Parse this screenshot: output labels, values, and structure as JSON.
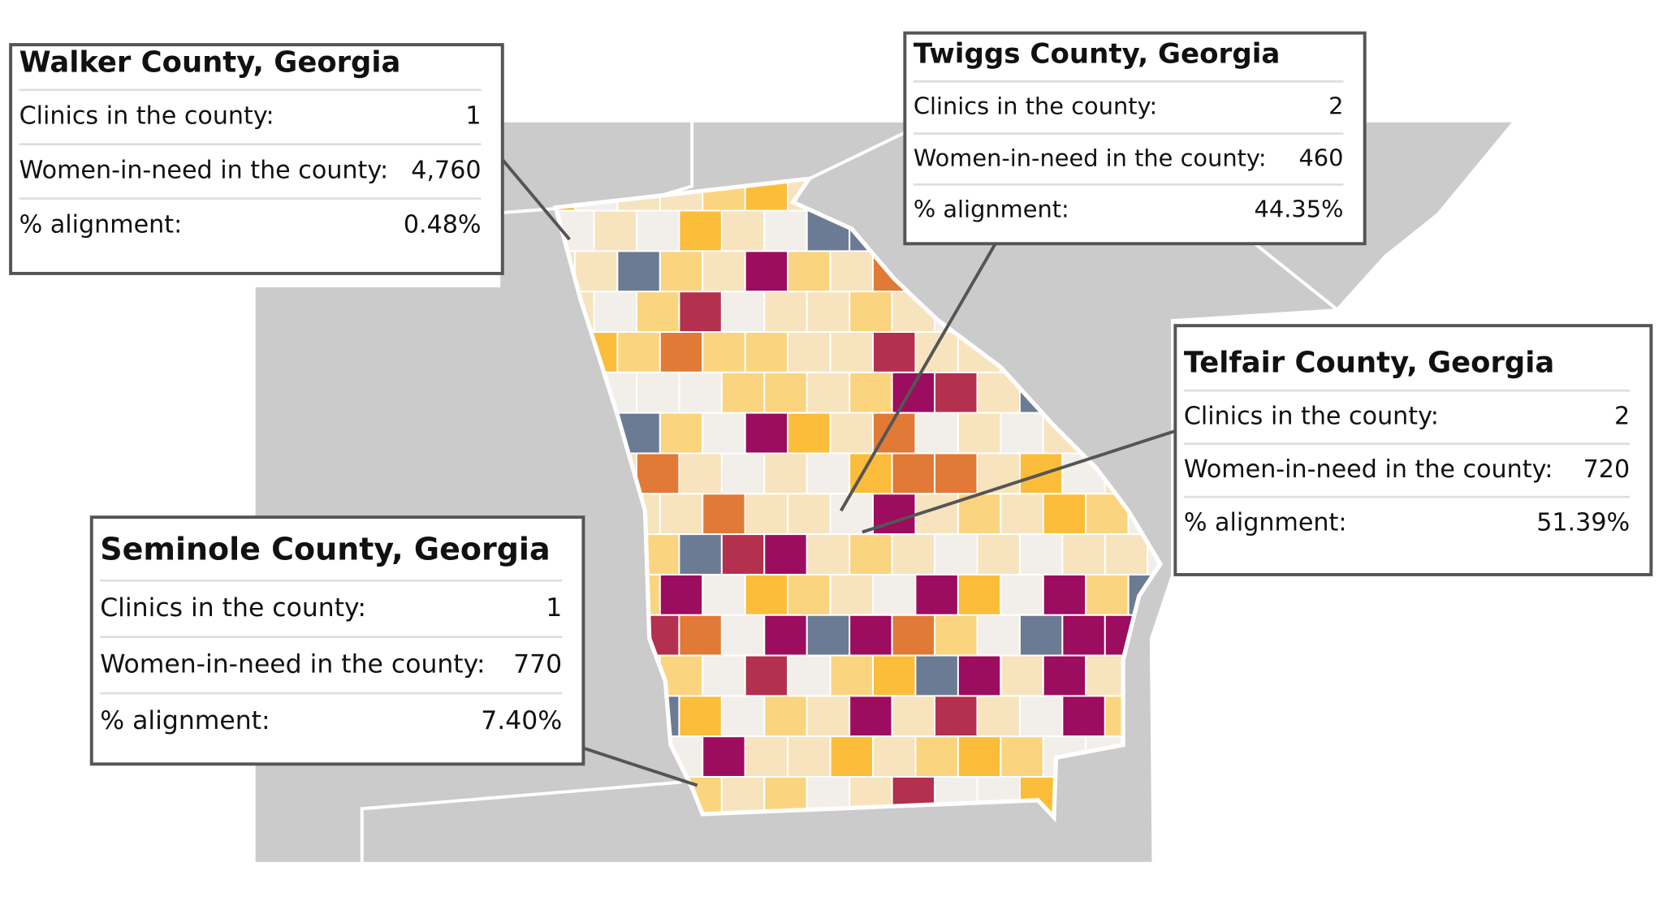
{
  "tooltips": [
    {
      "title": "Walker County, Georgia",
      "rows": [
        {
          "label": "Clinics in the county:",
          "value": "1"
        },
        {
          "label": "Women-in-need in the county:",
          "value": "4,760"
        },
        {
          "label": "% alignment:",
          "value": "0.48%"
        }
      ]
    },
    {
      "title": "Twiggs County, Georgia",
      "rows": [
        {
          "label": "Clinics in the county:",
          "value": "2"
        },
        {
          "label": "Women-in-need in the county:",
          "value": "460"
        },
        {
          "label": "% alignment:",
          "value": "44.35%"
        }
      ]
    },
    {
      "title": "Telfair County, Georgia",
      "rows": [
        {
          "label": "Clinics in the county:",
          "value": "2"
        },
        {
          "label": "Women-in-need in the county:",
          "value": "720"
        },
        {
          "label": "% alignment:",
          "value": "51.39%"
        }
      ]
    },
    {
      "title": "Seminole County, Georgia",
      "rows": [
        {
          "label": "Clinics in the county:",
          "value": "1"
        },
        {
          "label": "Women-in-need in the county:",
          "value": "770"
        },
        {
          "label": "% alignment:",
          "value": "7.40%"
        }
      ]
    }
  ]
}
